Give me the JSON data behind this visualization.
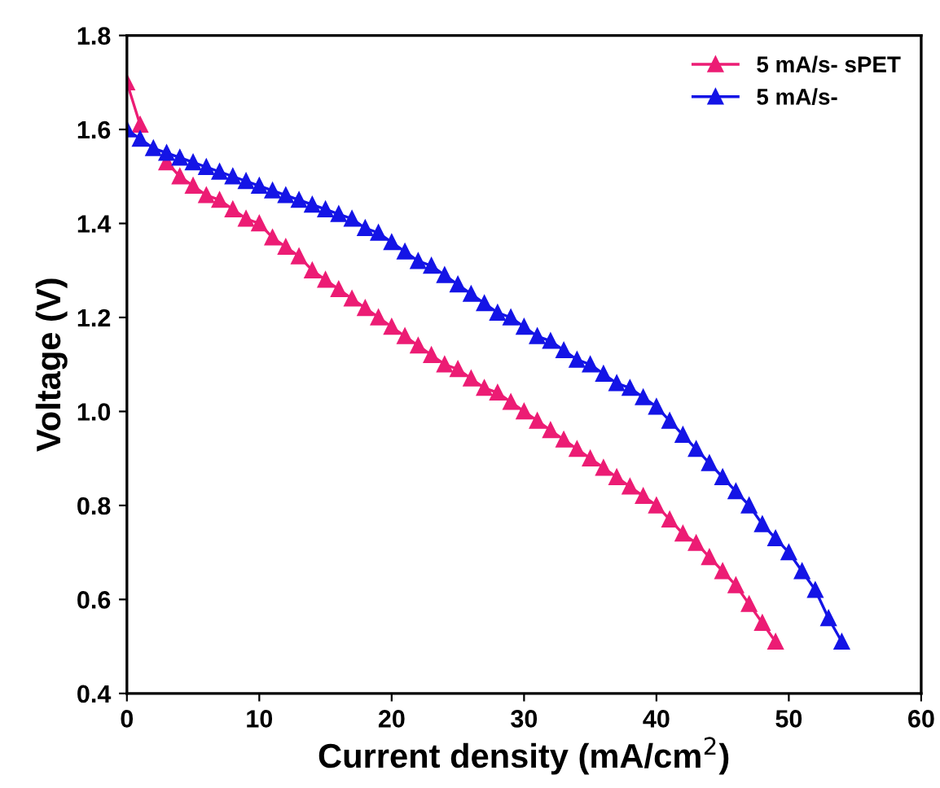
{
  "chart_data": {
    "type": "line",
    "xlabel": "Current density (mA/cm$^{2}$)",
    "ylabel": "Voltage (V)",
    "xlim": [
      0,
      60
    ],
    "ylim": [
      0.4,
      1.8
    ],
    "xticks": [
      0,
      10,
      20,
      30,
      40,
      50,
      60
    ],
    "yticks": [
      0.4,
      0.6,
      0.8,
      {
        "value": 1.0,
        "label": "1.0"
      },
      1.2,
      1.4,
      1.6,
      1.8
    ],
    "grid": false,
    "legend": "top right",
    "marker": "triangle",
    "line_style": "solid",
    "series": [
      {
        "name": "5 mA/s- sPET",
        "color": "#ec1c74",
        "x": [
          0,
          1,
          2,
          3,
          4,
          5,
          6,
          7,
          8,
          9,
          10,
          11,
          12,
          13,
          14,
          15,
          16,
          17,
          18,
          19,
          20,
          21,
          22,
          23,
          24,
          25,
          26,
          27,
          28,
          29,
          30,
          31,
          32,
          33,
          34,
          35,
          36,
          37,
          38,
          39,
          40,
          41,
          42,
          43,
          44,
          45,
          46,
          47,
          48,
          49
        ],
        "values": [
          1.7,
          1.61,
          null,
          1.53,
          1.5,
          1.48,
          1.46,
          1.45,
          1.43,
          1.41,
          1.4,
          1.37,
          1.35,
          1.33,
          1.3,
          1.28,
          1.26,
          1.24,
          1.22,
          1.2,
          1.18,
          1.16,
          1.14,
          1.12,
          1.1,
          1.09,
          1.07,
          1.05,
          1.04,
          1.02,
          1.0,
          0.98,
          0.96,
          0.94,
          0.92,
          0.9,
          0.88,
          0.86,
          0.84,
          0.82,
          0.8,
          0.77,
          0.74,
          0.72,
          0.69,
          0.66,
          0.63,
          0.59,
          0.55,
          0.51
        ]
      },
      {
        "name": "5 mA/s-",
        "color": "#1414e6",
        "x": [
          0,
          1,
          2,
          3,
          4,
          5,
          6,
          7,
          8,
          9,
          10,
          11,
          12,
          13,
          14,
          15,
          16,
          17,
          18,
          19,
          20,
          21,
          22,
          23,
          24,
          25,
          26,
          27,
          28,
          29,
          30,
          31,
          32,
          33,
          34,
          35,
          36,
          37,
          38,
          39,
          40,
          41,
          42,
          43,
          44,
          45,
          46,
          47,
          48,
          49,
          50,
          51,
          52,
          53,
          54
        ],
        "values": [
          1.6,
          1.58,
          1.56,
          1.55,
          1.54,
          1.53,
          1.52,
          1.51,
          1.5,
          1.49,
          1.48,
          1.47,
          1.46,
          1.45,
          1.44,
          1.43,
          1.42,
          1.41,
          1.39,
          1.38,
          1.36,
          1.34,
          1.32,
          1.31,
          1.29,
          1.27,
          1.25,
          1.23,
          1.21,
          1.2,
          1.18,
          1.16,
          1.15,
          1.13,
          1.11,
          1.1,
          1.08,
          1.06,
          1.05,
          1.03,
          1.01,
          0.98,
          0.95,
          0.92,
          0.89,
          0.86,
          0.83,
          0.8,
          0.76,
          0.73,
          0.7,
          0.66,
          0.62,
          0.56,
          0.51
        ]
      }
    ]
  }
}
